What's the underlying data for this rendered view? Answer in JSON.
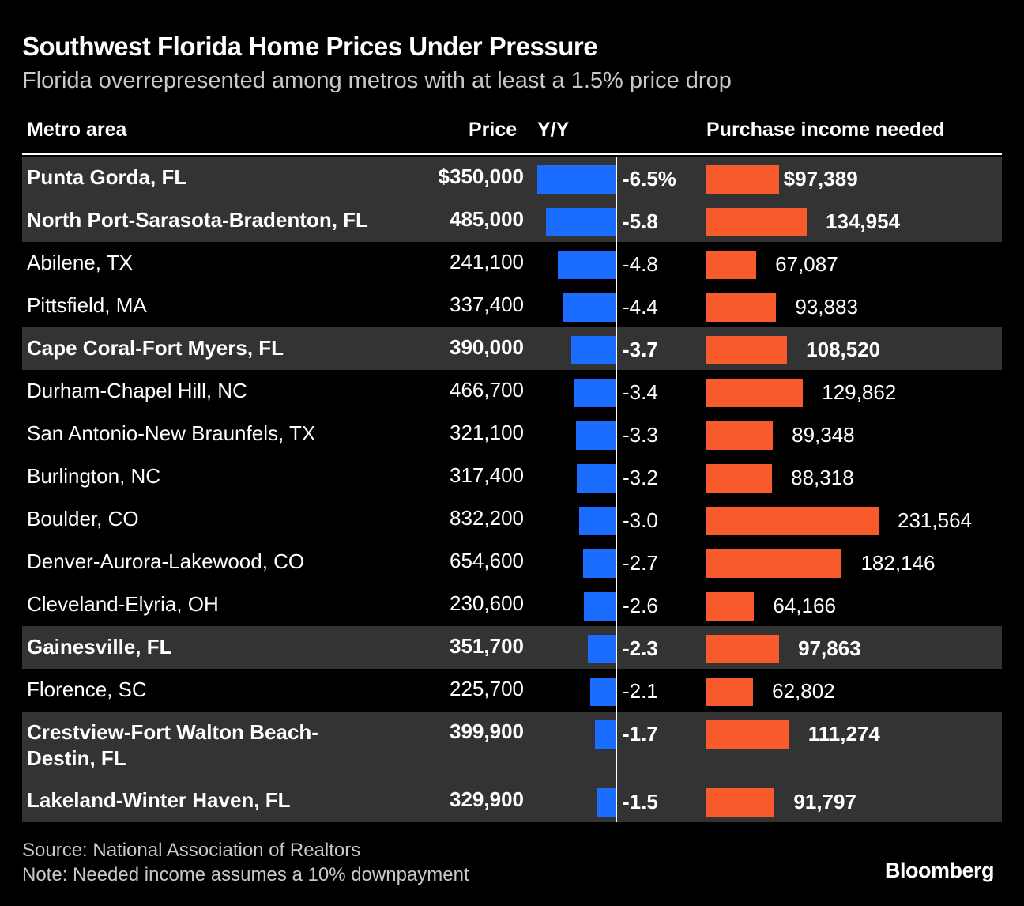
{
  "title": "Southwest Florida Home Prices Under Pressure",
  "subtitle": "Florida overrepresented among metros with at least a 1.5% price drop",
  "headers": {
    "metro": "Metro area",
    "price": "Price",
    "yoy": "Y/Y",
    "income": "Purchase income needed"
  },
  "source": "Source: National Association of Realtors",
  "note": "Note: Needed income assumes a 10% downpayment",
  "logo": "Bloomberg",
  "colors": {
    "yoy_bar": "#1a6dff",
    "income_bar": "#f85a2b",
    "highlight_row": "#333333"
  },
  "chart_data": {
    "type": "table",
    "columns": [
      "Metro area",
      "Price",
      "Y/Y",
      "Purchase income needed"
    ],
    "rows": [
      {
        "metro": "Punta Gorda, FL",
        "price_label": "$350,000",
        "yoy": -6.5,
        "yoy_label": "-6.5%",
        "income": 97389,
        "income_label": "$97,389",
        "highlight": true
      },
      {
        "metro": "North Port-Sarasota-Bradenton, FL",
        "price_label": "485,000",
        "yoy": -5.8,
        "yoy_label": "-5.8",
        "income": 134954,
        "income_label": "134,954",
        "highlight": true
      },
      {
        "metro": "Abilene, TX",
        "price_label": "241,100",
        "yoy": -4.8,
        "yoy_label": "-4.8",
        "income": 67087,
        "income_label": "67,087",
        "highlight": false
      },
      {
        "metro": "Pittsfield, MA",
        "price_label": "337,400",
        "yoy": -4.4,
        "yoy_label": "-4.4",
        "income": 93883,
        "income_label": "93,883",
        "highlight": false
      },
      {
        "metro": "Cape Coral-Fort Myers, FL",
        "price_label": "390,000",
        "yoy": -3.7,
        "yoy_label": "-3.7",
        "income": 108520,
        "income_label": "108,520",
        "highlight": true
      },
      {
        "metro": "Durham-Chapel Hill, NC",
        "price_label": "466,700",
        "yoy": -3.4,
        "yoy_label": "-3.4",
        "income": 129862,
        "income_label": "129,862",
        "highlight": false
      },
      {
        "metro": "San Antonio-New Braunfels, TX",
        "price_label": "321,100",
        "yoy": -3.3,
        "yoy_label": "-3.3",
        "income": 89348,
        "income_label": "89,348",
        "highlight": false
      },
      {
        "metro": "Burlington, NC",
        "price_label": "317,400",
        "yoy": -3.2,
        "yoy_label": "-3.2",
        "income": 88318,
        "income_label": "88,318",
        "highlight": false
      },
      {
        "metro": "Boulder, CO",
        "price_label": "832,200",
        "yoy": -3.0,
        "yoy_label": "-3.0",
        "income": 231564,
        "income_label": "231,564",
        "highlight": false
      },
      {
        "metro": "Denver-Aurora-Lakewood, CO",
        "price_label": "654,600",
        "yoy": -2.7,
        "yoy_label": "-2.7",
        "income": 182146,
        "income_label": "182,146",
        "highlight": false
      },
      {
        "metro": "Cleveland-Elyria, OH",
        "price_label": "230,600",
        "yoy": -2.6,
        "yoy_label": "-2.6",
        "income": 64166,
        "income_label": "64,166",
        "highlight": false
      },
      {
        "metro": "Gainesville, FL",
        "price_label": "351,700",
        "yoy": -2.3,
        "yoy_label": "-2.3",
        "income": 97863,
        "income_label": "97,863",
        "highlight": true
      },
      {
        "metro": "Florence, SC",
        "price_label": "225,700",
        "yoy": -2.1,
        "yoy_label": "-2.1",
        "income": 62802,
        "income_label": "62,802",
        "highlight": false
      },
      {
        "metro": "Crestview-Fort Walton Beach-Destin, FL",
        "metro_lines": [
          "Crestview-Fort Walton Beach-",
          "Destin, FL"
        ],
        "price_label": "399,900",
        "yoy": -1.7,
        "yoy_label": "-1.7",
        "income": 111274,
        "income_label": "111,274",
        "highlight": true
      },
      {
        "metro": "Lakeland-Winter Haven, FL",
        "price_label": "329,900",
        "yoy": -1.5,
        "yoy_label": "-1.5",
        "income": 91797,
        "income_label": "91,797",
        "highlight": true
      }
    ]
  }
}
